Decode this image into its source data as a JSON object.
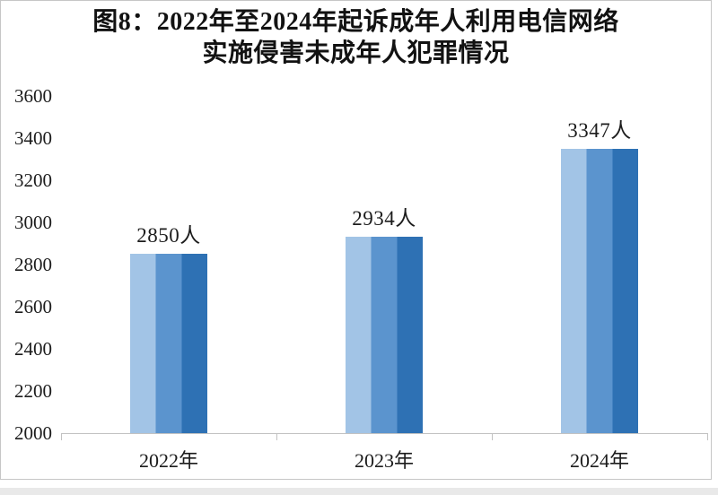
{
  "figure": {
    "title_line1": "图8：2022年至2024年起诉成年人利用电信网络",
    "title_line2": "实施侵害未成年人犯罪情况"
  },
  "chart_data": {
    "type": "bar",
    "title": "图8：2022年至2024年起诉成年人利用电信网络实施侵害未成年人犯罪情况",
    "categories": [
      "2022年",
      "2023年",
      "2024年"
    ],
    "values": [
      2850,
      2934,
      3347
    ],
    "data_labels": [
      "2850人",
      "2934人",
      "3347人"
    ],
    "xlabel": "",
    "ylabel": "",
    "ylim": [
      2000,
      3600
    ],
    "yticks": [
      2000,
      2200,
      2400,
      2600,
      2800,
      3000,
      3200,
      3400,
      3600
    ],
    "grid": false,
    "legend": "none",
    "bar_stripe_colors": [
      "#a2c4e6",
      "#5b94ce",
      "#2e71b4"
    ],
    "axis_color": "#c2c2c2",
    "text_color": "#1c1c1c"
  }
}
